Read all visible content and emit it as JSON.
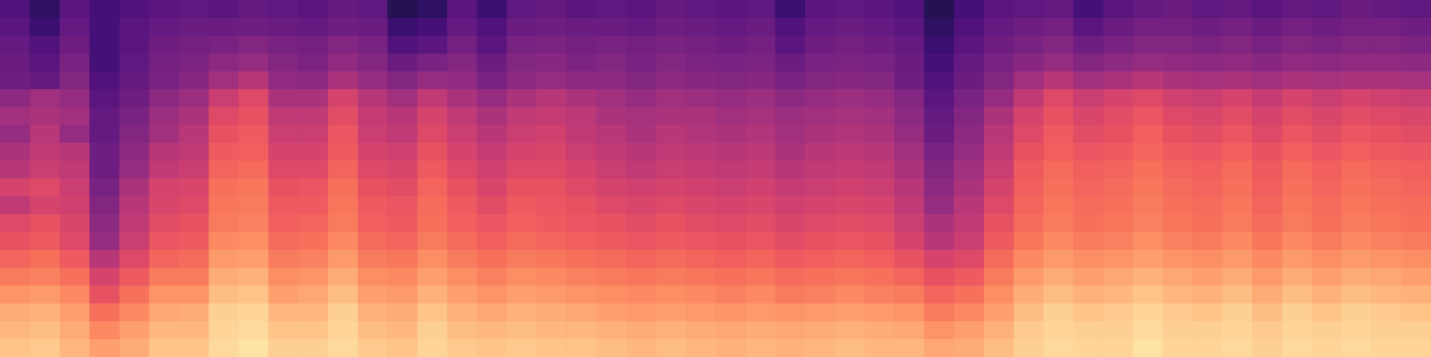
{
  "chart_data": {
    "type": "heatmap",
    "color": "magma",
    "tick_labels": false,
    "zlim": [
      -80,
      0
    ],
    "values": [
      [
        -60,
        -66,
        -58,
        -62,
        -60,
        -58,
        -57,
        -58,
        -56,
        -57,
        -58,
        -56,
        -57,
        -68,
        -66,
        -58,
        -64,
        -57,
        -56,
        -58,
        -57,
        -58,
        -56,
        -57,
        -58,
        -57,
        -64,
        -58,
        -57,
        -58,
        -60,
        -68,
        -62,
        -58,
        -57,
        -56,
        -62,
        -58,
        -56,
        -55,
        -57,
        -56,
        -58,
        -56,
        -57,
        -55,
        -56,
        -57
      ],
      [
        -58,
        -64,
        -56,
        -62,
        -58,
        -56,
        -55,
        -55,
        -54,
        -55,
        -56,
        -54,
        -55,
        -64,
        -62,
        -56,
        -60,
        -55,
        -54,
        -55,
        -55,
        -56,
        -54,
        -55,
        -56,
        -55,
        -60,
        -56,
        -55,
        -56,
        -58,
        -66,
        -60,
        -56,
        -54,
        -53,
        -58,
        -55,
        -53,
        -53,
        -54,
        -53,
        -55,
        -53,
        -54,
        -53,
        -53,
        -54
      ],
      [
        -56,
        -60,
        -54,
        -62,
        -58,
        -54,
        -53,
        -52,
        -50,
        -52,
        -53,
        -50,
        -52,
        -60,
        -58,
        -53,
        -58,
        -52,
        -51,
        -53,
        -52,
        -53,
        -52,
        -53,
        -54,
        -53,
        -58,
        -54,
        -53,
        -54,
        -56,
        -64,
        -58,
        -54,
        -52,
        -50,
        -54,
        -52,
        -50,
        -50,
        -51,
        -50,
        -52,
        -50,
        -51,
        -50,
        -50,
        -51
      ],
      [
        -55,
        -58,
        -52,
        -62,
        -57,
        -53,
        -51,
        -48,
        -46,
        -50,
        -51,
        -47,
        -50,
        -55,
        -52,
        -50,
        -55,
        -50,
        -49,
        -51,
        -50,
        -52,
        -50,
        -51,
        -52,
        -51,
        -55,
        -52,
        -51,
        -52,
        -55,
        -62,
        -56,
        -52,
        -49,
        -46,
        -50,
        -48,
        -46,
        -47,
        -48,
        -47,
        -49,
        -47,
        -48,
        -47,
        -47,
        -48
      ],
      [
        -54,
        -56,
        -50,
        -60,
        -56,
        -52,
        -49,
        -44,
        -40,
        -47,
        -48,
        -42,
        -46,
        -50,
        -46,
        -47,
        -52,
        -48,
        -46,
        -48,
        -48,
        -50,
        -48,
        -49,
        -50,
        -49,
        -52,
        -50,
        -49,
        -50,
        -54,
        -60,
        -55,
        -50,
        -44,
        -40,
        -44,
        -42,
        -40,
        -42,
        -43,
        -42,
        -44,
        -42,
        -43,
        -42,
        -42,
        -43
      ],
      [
        -48,
        -44,
        -46,
        -58,
        -54,
        -48,
        -45,
        -36,
        -32,
        -42,
        -42,
        -34,
        -40,
        -44,
        -38,
        -42,
        -46,
        -42,
        -40,
        -42,
        -44,
        -46,
        -44,
        -45,
        -46,
        -45,
        -48,
        -46,
        -45,
        -46,
        -50,
        -58,
        -52,
        -46,
        -38,
        -32,
        -36,
        -34,
        -32,
        -35,
        -36,
        -34,
        -37,
        -34,
        -36,
        -34,
        -35,
        -36
      ],
      [
        -44,
        -42,
        -44,
        -56,
        -52,
        -45,
        -42,
        -32,
        -30,
        -38,
        -38,
        -31,
        -37,
        -40,
        -34,
        -38,
        -42,
        -38,
        -37,
        -39,
        -42,
        -43,
        -42,
        -42,
        -44,
        -43,
        -45,
        -44,
        -43,
        -44,
        -48,
        -56,
        -50,
        -42,
        -34,
        -30,
        -33,
        -31,
        -29,
        -32,
        -33,
        -31,
        -34,
        -31,
        -33,
        -31,
        -32,
        -33
      ],
      [
        -46,
        -40,
        -46,
        -56,
        -50,
        -44,
        -40,
        -30,
        -28,
        -36,
        -36,
        -29,
        -36,
        -38,
        -32,
        -36,
        -40,
        -36,
        -35,
        -38,
        -40,
        -42,
        -40,
        -41,
        -42,
        -41,
        -44,
        -42,
        -41,
        -42,
        -46,
        -55,
        -48,
        -40,
        -32,
        -28,
        -31,
        -30,
        -27,
        -30,
        -31,
        -29,
        -32,
        -29,
        -31,
        -29,
        -30,
        -31
      ],
      [
        -42,
        -38,
        -40,
        -54,
        -48,
        -40,
        -38,
        -28,
        -27,
        -34,
        -34,
        -28,
        -34,
        -35,
        -30,
        -34,
        -37,
        -34,
        -33,
        -36,
        -38,
        -40,
        -38,
        -39,
        -40,
        -39,
        -42,
        -40,
        -39,
        -40,
        -44,
        -52,
        -46,
        -38,
        -30,
        -27,
        -29,
        -28,
        -26,
        -28,
        -29,
        -27,
        -30,
        -27,
        -29,
        -27,
        -28,
        -29
      ],
      [
        -40,
        -36,
        -38,
        -54,
        -46,
        -38,
        -36,
        -26,
        -25,
        -32,
        -32,
        -26,
        -32,
        -33,
        -28,
        -32,
        -35,
        -32,
        -32,
        -34,
        -36,
        -38,
        -36,
        -37,
        -38,
        -37,
        -40,
        -38,
        -37,
        -38,
        -42,
        -50,
        -44,
        -36,
        -28,
        -25,
        -27,
        -26,
        -24,
        -26,
        -27,
        -25,
        -28,
        -25,
        -27,
        -25,
        -26,
        -27
      ],
      [
        -34,
        -32,
        -36,
        -52,
        -42,
        -34,
        -33,
        -24,
        -23,
        -30,
        -29,
        -24,
        -30,
        -31,
        -26,
        -30,
        -33,
        -30,
        -30,
        -32,
        -34,
        -35,
        -34,
        -35,
        -36,
        -35,
        -37,
        -36,
        -35,
        -36,
        -40,
        -48,
        -42,
        -34,
        -27,
        -24,
        -26,
        -25,
        -23,
        -25,
        -26,
        -24,
        -27,
        -24,
        -26,
        -24,
        -25,
        -26
      ],
      [
        -38,
        -34,
        -35,
        -50,
        -40,
        -33,
        -32,
        -23,
        -22,
        -28,
        -28,
        -23,
        -28,
        -29,
        -25,
        -28,
        -31,
        -28,
        -29,
        -30,
        -32,
        -33,
        -32,
        -33,
        -34,
        -33,
        -35,
        -34,
        -33,
        -34,
        -38,
        -46,
        -40,
        -32,
        -26,
        -23,
        -25,
        -24,
        -22,
        -24,
        -25,
        -23,
        -26,
        -23,
        -25,
        -23,
        -24,
        -25
      ],
      [
        -32,
        -30,
        -33,
        -48,
        -38,
        -31,
        -30,
        -22,
        -21,
        -27,
        -26,
        -22,
        -27,
        -28,
        -24,
        -27,
        -29,
        -27,
        -28,
        -29,
        -30,
        -31,
        -30,
        -31,
        -32,
        -31,
        -33,
        -32,
        -31,
        -32,
        -36,
        -42,
        -38,
        -30,
        -25,
        -22,
        -24,
        -23,
        -21,
        -23,
        -24,
        -22,
        -25,
        -22,
        -24,
        -22,
        -23,
        -24
      ],
      [
        -30,
        -28,
        -32,
        -46,
        -36,
        -29,
        -28,
        -20,
        -19,
        -25,
        -24,
        -20,
        -25,
        -26,
        -22,
        -25,
        -27,
        -25,
        -26,
        -27,
        -28,
        -29,
        -28,
        -29,
        -30,
        -29,
        -31,
        -30,
        -29,
        -30,
        -34,
        -40,
        -36,
        -28,
        -23,
        -20,
        -22,
        -21,
        -19,
        -21,
        -22,
        -20,
        -23,
        -20,
        -22,
        -20,
        -21,
        -22
      ],
      [
        -26,
        -24,
        -28,
        -40,
        -32,
        -26,
        -25,
        -17,
        -16,
        -22,
        -21,
        -17,
        -22,
        -23,
        -19,
        -22,
        -24,
        -22,
        -23,
        -24,
        -25,
        -26,
        -25,
        -26,
        -27,
        -26,
        -28,
        -27,
        -26,
        -27,
        -30,
        -34,
        -32,
        -25,
        -20,
        -17,
        -19,
        -18,
        -16,
        -18,
        -19,
        -17,
        -20,
        -17,
        -19,
        -17,
        -18,
        -19
      ],
      [
        -22,
        -21,
        -24,
        -34,
        -28,
        -22,
        -22,
        -14,
        -13,
        -19,
        -18,
        -14,
        -19,
        -20,
        -16,
        -19,
        -21,
        -19,
        -20,
        -21,
        -22,
        -23,
        -22,
        -23,
        -24,
        -23,
        -25,
        -24,
        -23,
        -24,
        -26,
        -30,
        -28,
        -22,
        -17,
        -14,
        -16,
        -15,
        -13,
        -15,
        -16,
        -14,
        -17,
        -14,
        -16,
        -14,
        -15,
        -16
      ],
      [
        -18,
        -17,
        -20,
        -30,
        -24,
        -18,
        -18,
        -11,
        -10,
        -16,
        -15,
        -11,
        -16,
        -17,
        -13,
        -16,
        -18,
        -16,
        -17,
        -18,
        -19,
        -20,
        -19,
        -20,
        -21,
        -20,
        -22,
        -21,
        -20,
        -21,
        -22,
        -26,
        -24,
        -19,
        -14,
        -11,
        -13,
        -12,
        -10,
        -12,
        -13,
        -11,
        -14,
        -11,
        -13,
        -11,
        -12,
        -13
      ],
      [
        -14,
        -13,
        -16,
        -24,
        -20,
        -15,
        -14,
        -8,
        -7,
        -12,
        -12,
        -8,
        -13,
        -14,
        -10,
        -13,
        -15,
        -13,
        -14,
        -15,
        -16,
        -17,
        -16,
        -17,
        -18,
        -17,
        -18,
        -17,
        -16,
        -17,
        -18,
        -22,
        -20,
        -16,
        -11,
        -8,
        -10,
        -9,
        -7,
        -9,
        -10,
        -8,
        -11,
        -8,
        -10,
        -8,
        -9,
        -10
      ],
      [
        -12,
        -11,
        -14,
        -20,
        -16,
        -12,
        -12,
        -7,
        -6,
        -10,
        -10,
        -7,
        -11,
        -12,
        -8,
        -11,
        -12,
        -11,
        -12,
        -12,
        -13,
        -14,
        -13,
        -14,
        -15,
        -14,
        -15,
        -14,
        -13,
        -14,
        -15,
        -18,
        -16,
        -13,
        -9,
        -7,
        -8,
        -8,
        -6,
        -8,
        -8,
        -7,
        -9,
        -7,
        -8,
        -7,
        -8,
        -8
      ],
      [
        -10,
        -9,
        -12,
        -16,
        -14,
        -10,
        -10,
        -6,
        -5,
        -8,
        -8,
        -6,
        -9,
        -10,
        -7,
        -9,
        -10,
        -9,
        -10,
        -10,
        -11,
        -12,
        -11,
        -12,
        -13,
        -12,
        -13,
        -12,
        -11,
        -12,
        -12,
        -15,
        -14,
        -11,
        -8,
        -6,
        -7,
        -7,
        -5,
        -7,
        -7,
        -6,
        -8,
        -6,
        -7,
        -6,
        -7,
        -7
      ]
    ]
  }
}
